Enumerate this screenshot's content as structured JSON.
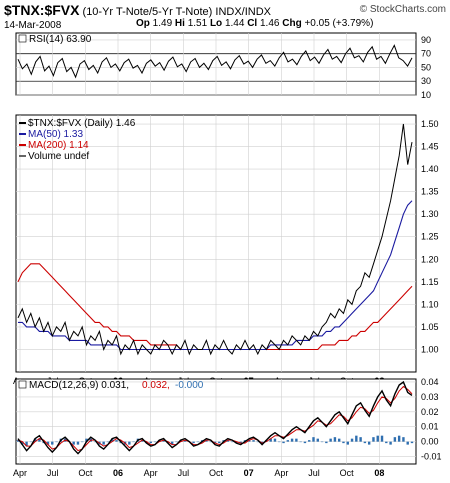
{
  "header": {
    "symbol": "$TNX:$FVX",
    "description": "(10-Yr T-Note/5-Yr T-Note)",
    "exchange": "INDX/INDX",
    "date": "14-Mar-2008",
    "open_label": "Op",
    "open": "1.49",
    "high_label": "Hi",
    "high": "1.51",
    "low_label": "Lo",
    "low": "1.44",
    "close_label": "Cl",
    "close": "1.46",
    "change_label": "Chg",
    "change": "+0.05 (+3.79%)",
    "watermark": "© StockCharts.com"
  },
  "colors": {
    "price": "#000000",
    "ma50": "#1a1aa0",
    "ma200": "#cc0000",
    "signal": "#cc0000",
    "hist": "#2f6fb0",
    "guide": "#222222"
  },
  "chart_data": [
    {
      "type": "line",
      "panel": "rsi",
      "legend": "RSI(14) 63.90",
      "ylim": [
        10,
        100
      ],
      "yticks": [
        "90",
        "70",
        "50",
        "30",
        "10"
      ],
      "guides": [
        70,
        30
      ],
      "series": [
        {
          "name": "RSI(14)",
          "values": [
            62,
            48,
            55,
            40,
            58,
            66,
            45,
            52,
            38,
            57,
            63,
            44,
            50,
            36,
            55,
            60,
            47,
            53,
            42,
            58,
            64,
            50,
            55,
            45,
            57,
            62,
            49,
            53,
            42,
            56,
            61,
            52,
            57,
            46,
            59,
            65,
            51,
            55,
            44,
            58,
            63,
            50,
            56,
            47,
            60,
            66,
            53,
            58,
            48,
            61,
            67,
            55,
            59,
            50,
            62,
            68,
            56,
            60,
            52,
            64,
            72,
            58,
            62,
            54,
            66,
            74,
            60,
            65,
            56,
            68,
            76,
            62,
            66,
            57,
            70,
            78,
            64,
            67,
            58,
            72,
            80,
            62,
            66,
            56,
            70,
            82,
            64,
            60,
            52,
            63.9
          ]
        }
      ]
    },
    {
      "type": "line",
      "panel": "price",
      "ylim": [
        0.95,
        1.52
      ],
      "yticks": [
        "1.50",
        "1.45",
        "1.40",
        "1.35",
        "1.30",
        "1.25",
        "1.20",
        "1.15",
        "1.10",
        "1.05",
        "1.00"
      ],
      "xlabels": [
        "Apr",
        "Jul",
        "Oct",
        "06",
        "Apr",
        "Jul",
        "Oct",
        "07",
        "Apr",
        "Jul",
        "Oct",
        "08"
      ],
      "legend": [
        "$TNX:$FVX (Daily) 1.46",
        "MA(50) 1.33",
        "MA(200) 1.14",
        "Volume undef"
      ],
      "series": [
        {
          "name": "$TNX:$FVX",
          "values": [
            1.07,
            1.09,
            1.06,
            1.08,
            1.05,
            1.07,
            1.04,
            1.06,
            1.03,
            1.05,
            1.04,
            1.06,
            1.02,
            1.04,
            1.03,
            1.05,
            1.01,
            1.03,
            1.02,
            1.04,
            1.0,
            1.02,
            1.01,
            1.03,
            0.99,
            1.01,
            1.0,
            1.02,
            0.99,
            1.01,
            1.0,
            0.99,
            1.01,
            1.0,
            1.02,
            1.01,
            0.99,
            1.01,
            1.0,
            1.02,
            0.99,
            1.01,
            1.0,
            1.0,
            1.02,
            0.99,
            1.01,
            1.0,
            1.02,
            1.0,
            0.99,
            1.01,
            1.0,
            1.02,
            1.0,
            1.01,
            0.99,
            1.01,
            1.0,
            1.02,
            1.01,
            1.0,
            1.02,
            1.01,
            1.03,
            1.02,
            1.01,
            1.03,
            1.02,
            1.04,
            1.03,
            1.05,
            1.06,
            1.08,
            1.07,
            1.09,
            1.08,
            1.11,
            1.1,
            1.13,
            1.14,
            1.17,
            1.16,
            1.19,
            1.22,
            1.25,
            1.29,
            1.33,
            1.38,
            1.43,
            1.5,
            1.41,
            1.46
          ]
        },
        {
          "name": "MA(50)",
          "values": [
            1.06,
            1.06,
            1.05,
            1.05,
            1.05,
            1.04,
            1.04,
            1.04,
            1.03,
            1.03,
            1.03,
            1.03,
            1.02,
            1.02,
            1.02,
            1.02,
            1.02,
            1.01,
            1.01,
            1.01,
            1.01,
            1.01,
            1.01,
            1.01,
            1.0,
            1.0,
            1.0,
            1.0,
            1.0,
            1.0,
            1.0,
            1.0,
            1.0,
            1.0,
            1.0,
            1.0,
            1.0,
            1.0,
            1.0,
            1.0,
            1.0,
            1.0,
            1.0,
            1.0,
            1.0,
            1.0,
            1.0,
            1.0,
            1.0,
            1.0,
            1.0,
            1.0,
            1.0,
            1.0,
            1.0,
            1.0,
            1.0,
            1.0,
            1.0,
            1.01,
            1.01,
            1.01,
            1.01,
            1.01,
            1.01,
            1.02,
            1.02,
            1.02,
            1.02,
            1.03,
            1.03,
            1.03,
            1.04,
            1.04,
            1.05,
            1.05,
            1.06,
            1.07,
            1.08,
            1.09,
            1.1,
            1.11,
            1.12,
            1.13,
            1.15,
            1.17,
            1.19,
            1.21,
            1.24,
            1.27,
            1.3,
            1.32,
            1.33
          ]
        },
        {
          "name": "MA(200)",
          "values": [
            1.15,
            1.17,
            1.18,
            1.19,
            1.19,
            1.19,
            1.18,
            1.17,
            1.16,
            1.15,
            1.14,
            1.13,
            1.12,
            1.11,
            1.1,
            1.09,
            1.08,
            1.07,
            1.06,
            1.06,
            1.05,
            1.05,
            1.04,
            1.04,
            1.03,
            1.03,
            1.03,
            1.02,
            1.02,
            1.02,
            1.02,
            1.01,
            1.01,
            1.01,
            1.01,
            1.01,
            1.01,
            1.01,
            1.0,
            1.0,
            1.0,
            1.0,
            1.0,
            1.0,
            1.0,
            1.0,
            1.0,
            1.0,
            1.0,
            1.0,
            1.0,
            1.0,
            1.0,
            1.0,
            1.0,
            1.0,
            1.0,
            1.0,
            1.0,
            1.0,
            1.0,
            1.0,
            1.0,
            1.0,
            1.0,
            1.0,
            1.0,
            1.0,
            1.0,
            1.0,
            1.0,
            1.01,
            1.01,
            1.01,
            1.01,
            1.02,
            1.02,
            1.02,
            1.03,
            1.03,
            1.04,
            1.04,
            1.05,
            1.06,
            1.06,
            1.07,
            1.08,
            1.09,
            1.1,
            1.11,
            1.12,
            1.13,
            1.14
          ]
        }
      ]
    },
    {
      "type": "line",
      "panel": "macd",
      "legend": [
        "MACD(12,26,9) 0.031,",
        "0.032,",
        "-0.000"
      ],
      "ylim": [
        -0.015,
        0.042
      ],
      "yticks": [
        "0.04",
        "0.03",
        "0.02",
        "0.01",
        "0.00",
        "-0.01"
      ],
      "xlabels": [
        "Apr",
        "Jul",
        "Oct",
        "06",
        "Apr",
        "Jul",
        "Oct",
        "07",
        "Apr",
        "Jul",
        "Oct",
        "08"
      ],
      "series": [
        {
          "name": "MACD",
          "values": [
            0.002,
            -0.002,
            -0.006,
            -0.003,
            0.002,
            0.004,
            0.0,
            -0.004,
            -0.007,
            -0.004,
            0.001,
            0.003,
            0.0,
            -0.005,
            -0.008,
            -0.005,
            0.0,
            0.003,
            0.001,
            -0.003,
            -0.005,
            -0.002,
            0.002,
            0.003,
            0.0,
            -0.003,
            -0.006,
            -0.003,
            0.001,
            0.002,
            -0.001,
            -0.003,
            -0.002,
            0.001,
            0.002,
            -0.001,
            -0.004,
            -0.002,
            0.001,
            0.002,
            0.0,
            -0.003,
            -0.002,
            0.0,
            0.002,
            0.001,
            -0.002,
            -0.003,
            0.0,
            0.002,
            0.001,
            -0.001,
            -0.002,
            0.0,
            0.002,
            0.003,
            0.001,
            -0.002,
            0.001,
            0.004,
            0.006,
            0.004,
            0.002,
            0.005,
            0.008,
            0.01,
            0.008,
            0.006,
            0.01,
            0.014,
            0.016,
            0.013,
            0.01,
            0.014,
            0.018,
            0.02,
            0.016,
            0.012,
            0.018,
            0.024,
            0.026,
            0.021,
            0.017,
            0.024,
            0.03,
            0.034,
            0.028,
            0.024,
            0.032,
            0.038,
            0.04,
            0.033,
            0.031
          ]
        },
        {
          "name": "Signal",
          "values": [
            0.001,
            0.0,
            -0.003,
            -0.003,
            0.0,
            0.002,
            0.001,
            -0.002,
            -0.005,
            -0.004,
            -0.001,
            0.001,
            0.0,
            -0.003,
            -0.006,
            -0.005,
            -0.002,
            0.001,
            0.001,
            -0.001,
            -0.003,
            -0.002,
            0.0,
            0.002,
            0.001,
            -0.001,
            -0.004,
            -0.003,
            -0.001,
            0.001,
            0.0,
            -0.002,
            -0.002,
            0.0,
            0.001,
            0.0,
            -0.002,
            -0.002,
            0.0,
            0.001,
            0.0,
            -0.002,
            -0.002,
            -0.001,
            0.001,
            0.001,
            -0.001,
            -0.002,
            -0.001,
            0.001,
            0.001,
            0.0,
            -0.001,
            -0.001,
            0.001,
            0.002,
            0.001,
            -0.001,
            0.0,
            0.002,
            0.004,
            0.004,
            0.003,
            0.004,
            0.006,
            0.008,
            0.008,
            0.007,
            0.009,
            0.011,
            0.014,
            0.013,
            0.011,
            0.012,
            0.015,
            0.018,
            0.017,
            0.014,
            0.016,
            0.02,
            0.023,
            0.022,
            0.019,
            0.021,
            0.026,
            0.03,
            0.029,
            0.026,
            0.029,
            0.034,
            0.037,
            0.035,
            0.032
          ]
        }
      ]
    }
  ]
}
